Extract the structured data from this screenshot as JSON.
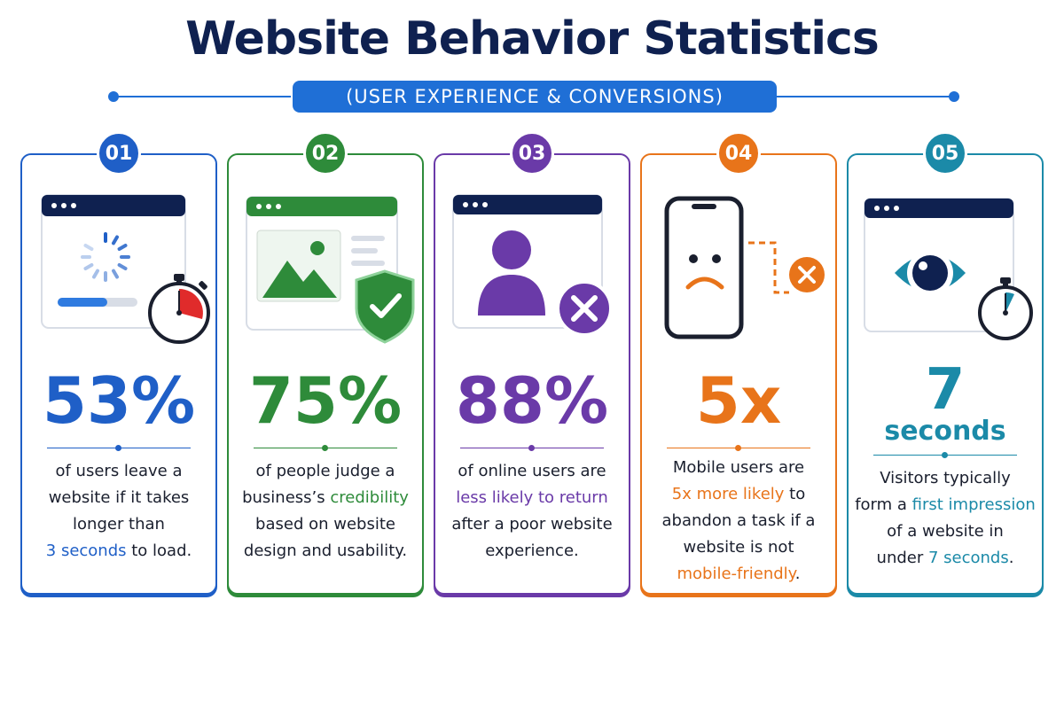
{
  "header": {
    "title": "Website Behavior Statistics",
    "subtitle": "(USER EXPERIENCE & CONVERSIONS)"
  },
  "colors": {
    "navy": "#0f2150",
    "blue": "#1f5fc7",
    "green": "#2e8b3a",
    "purple": "#6a3aa8",
    "orange": "#e8741a",
    "teal": "#1b8aa8"
  },
  "cards": [
    {
      "number": "01",
      "stat": "53%",
      "icon": "loading-browser-stopwatch-icon",
      "desc": {
        "l1": "of users leave a",
        "l2": "website if it takes",
        "l3": "longer than",
        "l4_hl": "3 seconds",
        "l4_rest": " to load."
      }
    },
    {
      "number": "02",
      "stat": "75%",
      "icon": "image-browser-shield-icon",
      "desc": {
        "l1": "of people judge a",
        "l2_pre": "business’s ",
        "l2_hl": "credibility",
        "l3": "based on website",
        "l4": "design and usability."
      }
    },
    {
      "number": "03",
      "stat": "88%",
      "icon": "user-browser-x-icon",
      "desc": {
        "l1": "of online users are",
        "l2_hl": "less likely to return",
        "l3": "after a poor website",
        "l4": "experience."
      }
    },
    {
      "number": "04",
      "stat": "5x",
      "icon": "sad-phone-x-icon",
      "desc": {
        "l1": "Mobile users are",
        "l2_hl": "5x more likely",
        "l2_rest": " to",
        "l3": "abandon a task if a",
        "l4": "website is not",
        "l5_hl": "mobile-friendly",
        "l5_rest": "."
      }
    },
    {
      "number": "05",
      "stat_num": "7",
      "stat_unit": "seconds",
      "icon": "eye-browser-stopwatch-icon",
      "desc": {
        "l1": "Visitors typically",
        "l2_pre": "form a ",
        "l2_hl": "first impression",
        "l3": "of a website in",
        "l4_pre": "under ",
        "l4_hl": "7 seconds",
        "l4_rest": "."
      }
    }
  ]
}
